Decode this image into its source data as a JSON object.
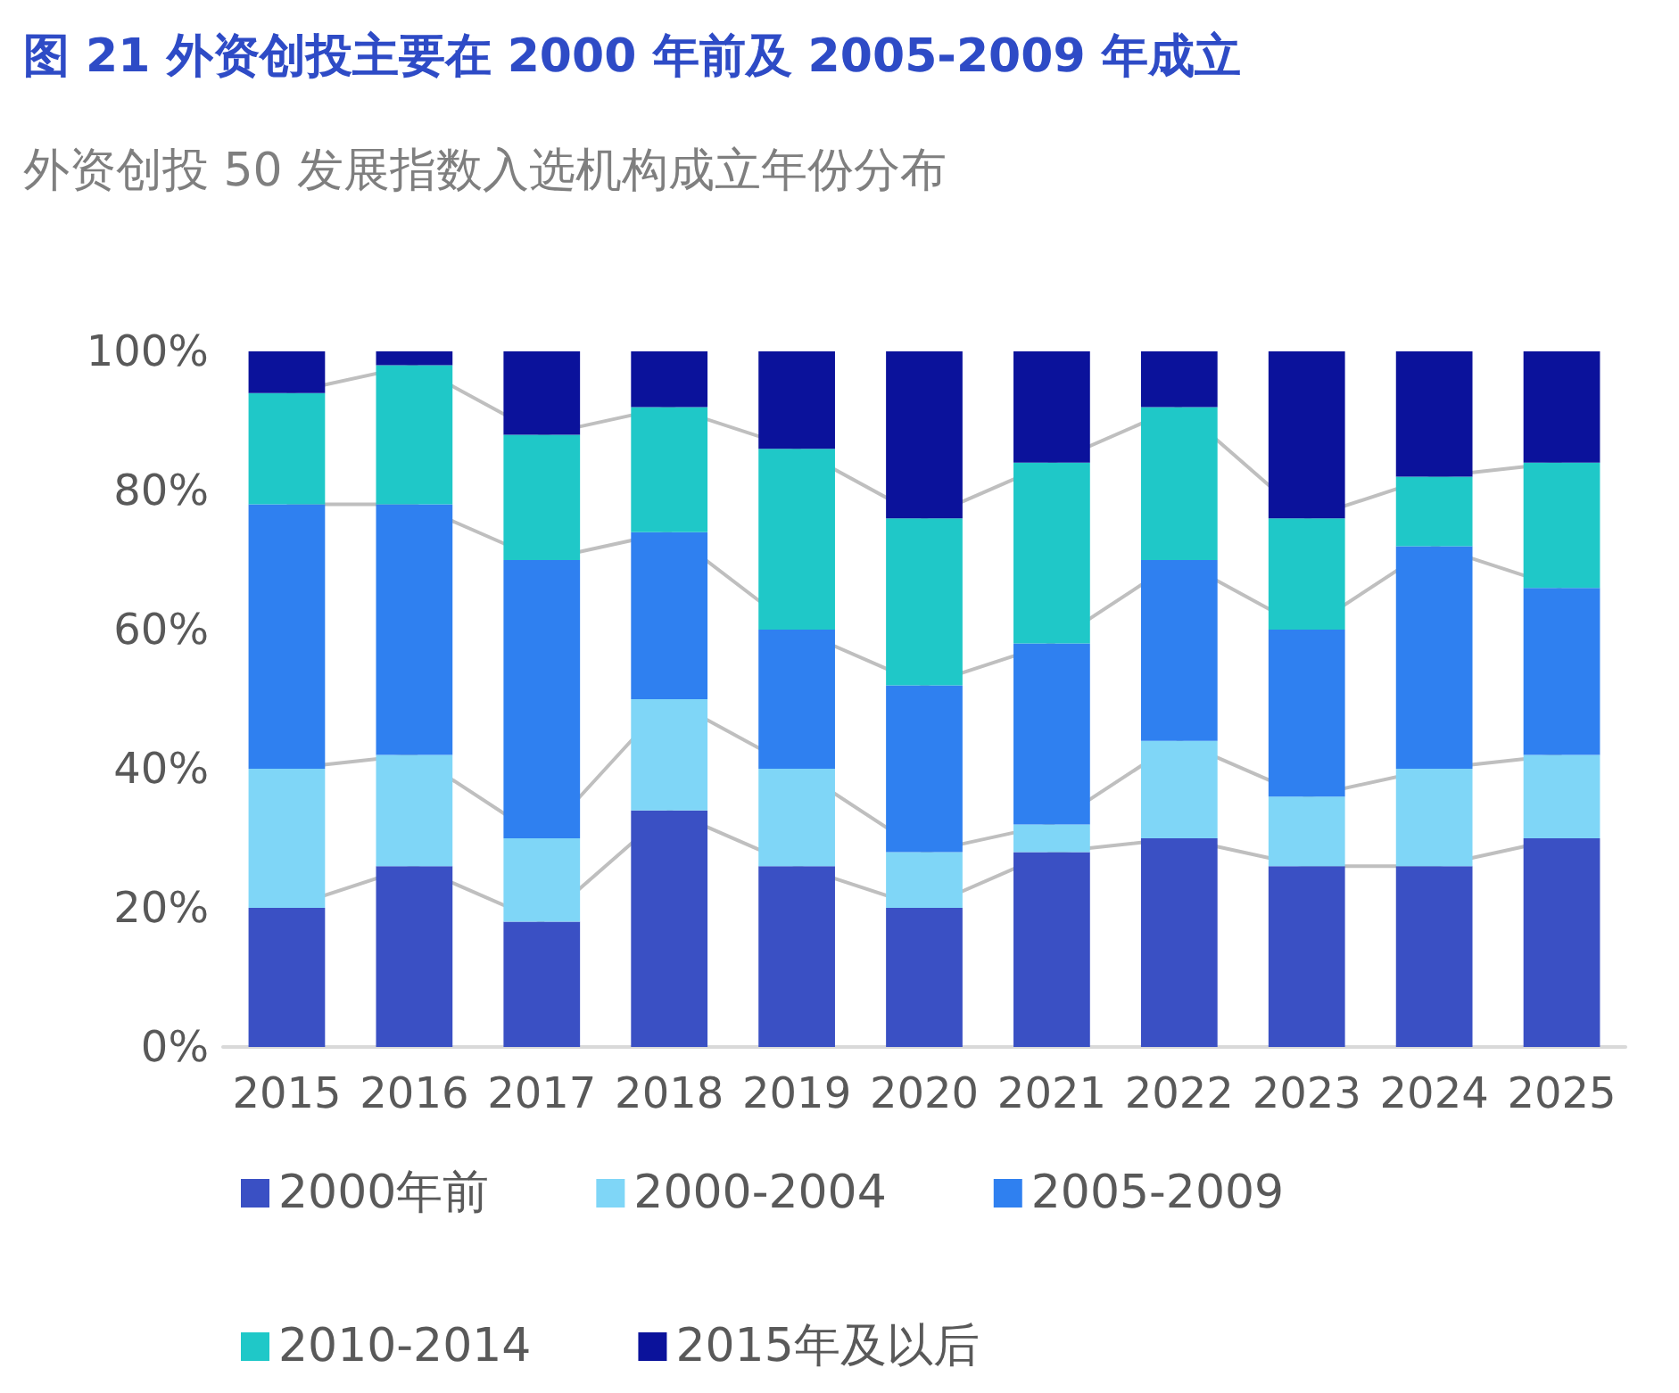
{
  "chart_data": {
    "type": "bar",
    "title": "图 21 外资创投主要在 2000 年前及 2005-2009 年成立",
    "subtitle": "外资创投 50 发展指数入选机构成立年份分布",
    "stacked": true,
    "categories": [
      "2015",
      "2016",
      "2017",
      "2018",
      "2019",
      "2020",
      "2021",
      "2022",
      "2023",
      "2024",
      "2025"
    ],
    "series": [
      {
        "name": "2000年前",
        "color": "#3a50c4",
        "values": [
          20,
          26,
          18,
          34,
          26,
          20,
          28,
          30,
          26,
          26,
          30
        ]
      },
      {
        "name": "2000-2004",
        "color": "#7fd6f7",
        "values": [
          20,
          16,
          12,
          16,
          14,
          8,
          4,
          14,
          10,
          14,
          12
        ]
      },
      {
        "name": "2005-2009",
        "color": "#2f80f0",
        "values": [
          38,
          36,
          40,
          24,
          20,
          24,
          26,
          26,
          24,
          32,
          24
        ]
      },
      {
        "name": "2010-2014",
        "color": "#1fc8c8",
        "values": [
          16,
          20,
          18,
          18,
          26,
          24,
          26,
          22,
          16,
          10,
          18
        ]
      },
      {
        "name": "2015年及以后",
        "color": "#0b129b",
        "values": [
          6,
          2,
          12,
          8,
          14,
          24,
          16,
          8,
          24,
          18,
          16
        ]
      }
    ],
    "ylim": [
      0,
      100
    ],
    "yticks": [
      {
        "value": 0,
        "label": "0%"
      },
      {
        "value": 20,
        "label": "20%"
      },
      {
        "value": 40,
        "label": "40%"
      },
      {
        "value": 60,
        "label": "60%"
      },
      {
        "value": 80,
        "label": "80%"
      },
      {
        "value": 100,
        "label": "100%"
      }
    ],
    "grid": false,
    "legend": "bottom"
  }
}
